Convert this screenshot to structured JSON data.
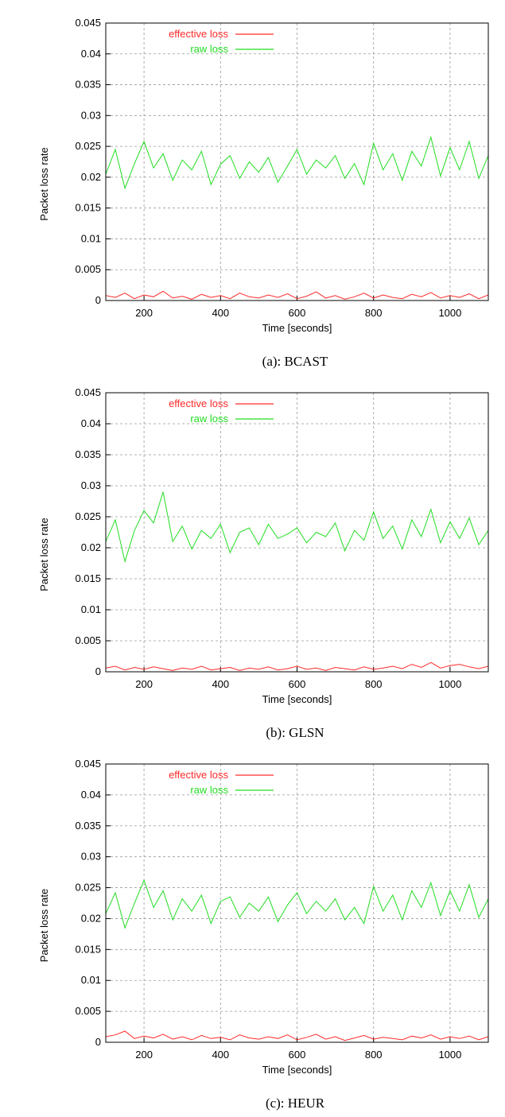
{
  "colors": {
    "effective": "#ff2a2a",
    "raw": "#22dd22",
    "grid": "#9a9a9a"
  },
  "chart_data": [
    {
      "type": "line",
      "caption": "(a): BCAST",
      "xlabel": "Time [seconds]",
      "ylabel": "Packet loss rate",
      "xlim": [
        100,
        1100
      ],
      "ylim": [
        0,
        0.045
      ],
      "xticks": [
        "200",
        "400",
        "600",
        "800",
        "1000"
      ],
      "yticks": [
        "0",
        "0.005",
        "0.01",
        "0.015",
        "0.02",
        "0.025",
        "0.03",
        "0.035",
        "0.04",
        "0.045"
      ],
      "grid": true,
      "legend_position": "top-left",
      "x": [
        100,
        125,
        150,
        175,
        200,
        225,
        250,
        275,
        300,
        325,
        350,
        375,
        400,
        425,
        450,
        475,
        500,
        525,
        550,
        575,
        600,
        625,
        650,
        675,
        700,
        725,
        750,
        775,
        800,
        825,
        850,
        875,
        900,
        925,
        950,
        975,
        1000,
        1025,
        1050,
        1075,
        1100
      ],
      "series": [
        {
          "name": "effective loss",
          "color_key": "effective",
          "values": [
            0.0008,
            0.0005,
            0.0012,
            0.0003,
            0.0009,
            0.0006,
            0.0015,
            0.0004,
            0.0007,
            0.0002,
            0.001,
            0.0005,
            0.0008,
            0.0003,
            0.0012,
            0.0006,
            0.0004,
            0.0009,
            0.0005,
            0.0011,
            0.0003,
            0.0007,
            0.0014,
            0.0004,
            0.0008,
            0.0002,
            0.0006,
            0.0012,
            0.0004,
            0.0009,
            0.0005,
            0.0003,
            0.001,
            0.0006,
            0.0013,
            0.0004,
            0.0008,
            0.0005,
            0.0011,
            0.0003,
            0.0009
          ]
        },
        {
          "name": "raw loss",
          "color_key": "raw",
          "values": [
            0.0205,
            0.0245,
            0.0182,
            0.0222,
            0.0258,
            0.0215,
            0.0238,
            0.0195,
            0.0228,
            0.0212,
            0.0242,
            0.0188,
            0.0221,
            0.0235,
            0.0198,
            0.0225,
            0.0208,
            0.0232,
            0.0192,
            0.0218,
            0.0245,
            0.0205,
            0.0228,
            0.0215,
            0.0235,
            0.0198,
            0.0222,
            0.0188,
            0.0255,
            0.0212,
            0.0238,
            0.0195,
            0.0242,
            0.0218,
            0.0265,
            0.0202,
            0.0248,
            0.0212,
            0.0258,
            0.0198,
            0.0235
          ]
        }
      ]
    },
    {
      "type": "line",
      "caption": "(b): GLSN",
      "xlabel": "Time [seconds]",
      "ylabel": "Packet loss rate",
      "xlim": [
        100,
        1100
      ],
      "ylim": [
        0,
        0.045
      ],
      "xticks": [
        "200",
        "400",
        "600",
        "800",
        "1000"
      ],
      "yticks": [
        "0",
        "0.005",
        "0.01",
        "0.015",
        "0.02",
        "0.025",
        "0.03",
        "0.035",
        "0.04",
        "0.045"
      ],
      "grid": true,
      "legend_position": "top-left",
      "x": [
        100,
        125,
        150,
        175,
        200,
        225,
        250,
        275,
        300,
        325,
        350,
        375,
        400,
        425,
        450,
        475,
        500,
        525,
        550,
        575,
        600,
        625,
        650,
        675,
        700,
        725,
        750,
        775,
        800,
        825,
        850,
        875,
        900,
        925,
        950,
        975,
        1000,
        1025,
        1050,
        1075,
        1100
      ],
      "series": [
        {
          "name": "effective loss",
          "color_key": "effective",
          "values": [
            0.0006,
            0.0009,
            0.0003,
            0.0007,
            0.0004,
            0.0008,
            0.0005,
            0.0002,
            0.0006,
            0.0004,
            0.0009,
            0.0003,
            0.0005,
            0.0007,
            0.0002,
            0.0006,
            0.0004,
            0.0008,
            0.0003,
            0.0005,
            0.0009,
            0.0004,
            0.0006,
            0.0002,
            0.0007,
            0.0005,
            0.0003,
            0.0008,
            0.0004,
            0.0006,
            0.0009,
            0.0005,
            0.0012,
            0.0007,
            0.0015,
            0.0006,
            0.001,
            0.0012,
            0.0008,
            0.0005,
            0.0009
          ]
        },
        {
          "name": "raw loss",
          "color_key": "raw",
          "values": [
            0.021,
            0.0245,
            0.0178,
            0.0228,
            0.026,
            0.024,
            0.029,
            0.021,
            0.0235,
            0.0198,
            0.0228,
            0.0215,
            0.0238,
            0.0192,
            0.0225,
            0.0232,
            0.0205,
            0.0238,
            0.0215,
            0.0222,
            0.0232,
            0.0208,
            0.0225,
            0.0218,
            0.024,
            0.0195,
            0.0228,
            0.0212,
            0.0258,
            0.0215,
            0.0235,
            0.0198,
            0.0245,
            0.0218,
            0.0262,
            0.0208,
            0.0242,
            0.0215,
            0.0248,
            0.0205,
            0.0228
          ]
        }
      ]
    },
    {
      "type": "line",
      "caption": "(c): HEUR",
      "xlabel": "Time [seconds]",
      "ylabel": "Packet loss rate",
      "xlim": [
        100,
        1100
      ],
      "ylim": [
        0,
        0.045
      ],
      "xticks": [
        "200",
        "400",
        "600",
        "800",
        "1000"
      ],
      "yticks": [
        "0",
        "0.005",
        "0.01",
        "0.015",
        "0.02",
        "0.025",
        "0.03",
        "0.035",
        "0.04",
        "0.045"
      ],
      "grid": true,
      "legend_position": "top-left",
      "x": [
        100,
        125,
        150,
        175,
        200,
        225,
        250,
        275,
        300,
        325,
        350,
        375,
        400,
        425,
        450,
        475,
        500,
        525,
        550,
        575,
        600,
        625,
        650,
        675,
        700,
        725,
        750,
        775,
        800,
        825,
        850,
        875,
        900,
        925,
        950,
        975,
        1000,
        1025,
        1050,
        1075,
        1100
      ],
      "series": [
        {
          "name": "effective loss",
          "color_key": "effective",
          "values": [
            0.0009,
            0.0012,
            0.0018,
            0.0006,
            0.001,
            0.0007,
            0.0013,
            0.0005,
            0.0009,
            0.0004,
            0.0011,
            0.0006,
            0.0008,
            0.0004,
            0.0012,
            0.0007,
            0.0005,
            0.0009,
            0.0006,
            0.0012,
            0.0004,
            0.0008,
            0.0013,
            0.0005,
            0.0009,
            0.0003,
            0.0007,
            0.0011,
            0.0005,
            0.0008,
            0.0006,
            0.0004,
            0.001,
            0.0007,
            0.0012,
            0.0005,
            0.0009,
            0.0006,
            0.001,
            0.0004,
            0.0009
          ]
        },
        {
          "name": "raw loss",
          "color_key": "raw",
          "values": [
            0.0208,
            0.0242,
            0.0185,
            0.0225,
            0.0262,
            0.0218,
            0.0245,
            0.0198,
            0.0232,
            0.0212,
            0.0238,
            0.0192,
            0.0228,
            0.0235,
            0.0202,
            0.0225,
            0.0212,
            0.0235,
            0.0195,
            0.0222,
            0.0242,
            0.0208,
            0.0228,
            0.0212,
            0.0232,
            0.0198,
            0.0218,
            0.0192,
            0.0252,
            0.0212,
            0.0238,
            0.0198,
            0.0245,
            0.0218,
            0.0258,
            0.0205,
            0.0245,
            0.0212,
            0.0255,
            0.0202,
            0.0232
          ]
        }
      ]
    }
  ]
}
